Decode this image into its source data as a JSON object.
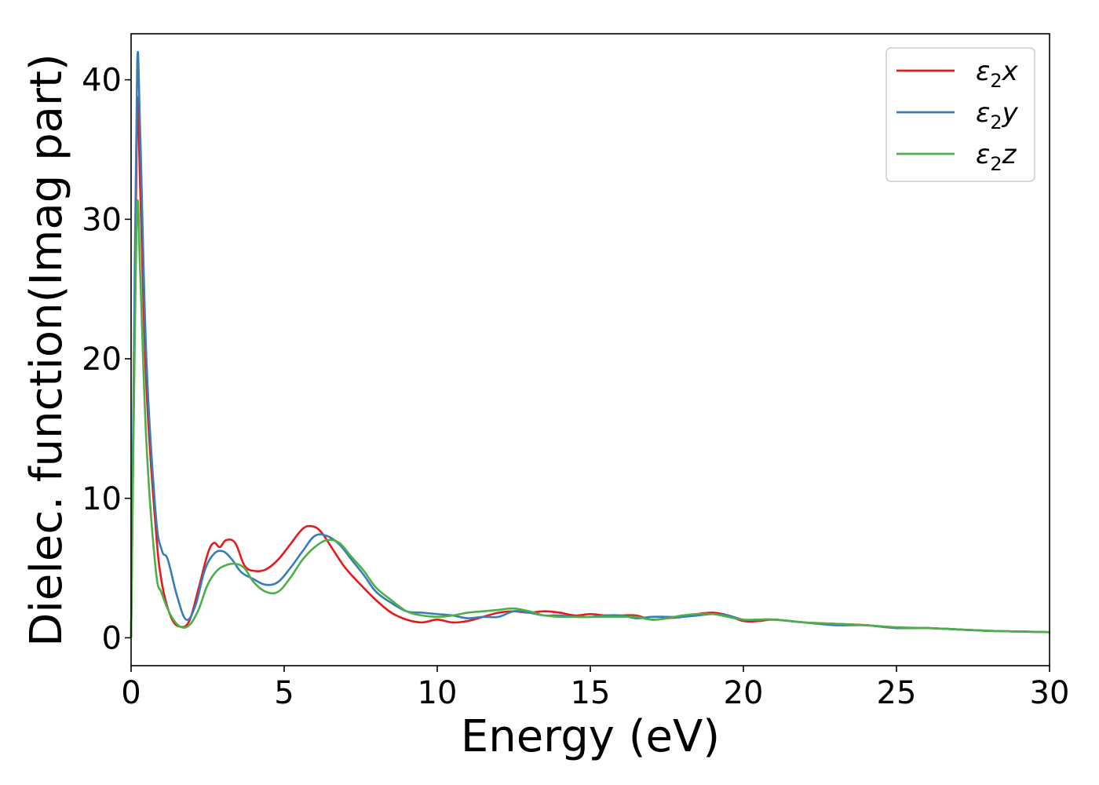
{
  "chart_data": {
    "type": "line",
    "title": "",
    "xlabel": "Energy (eV)",
    "ylabel": "Dielec. function(Imag part)",
    "xlim": [
      0,
      30
    ],
    "ylim": [
      -2,
      43.3
    ],
    "x_ticks": [
      0,
      5,
      10,
      15,
      20,
      25,
      30
    ],
    "y_ticks": [
      0,
      10,
      20,
      30,
      40
    ],
    "grid": false,
    "legend_position": "top-right",
    "series": [
      {
        "name": "ε2x",
        "legend_base": "ε",
        "legend_sub": "2",
        "legend_var": "x",
        "color": "#e41a1c",
        "x": [
          0,
          0.1,
          0.2,
          0.3,
          0.5,
          0.8,
          1.0,
          1.3,
          1.6,
          1.9,
          2.2,
          2.5,
          2.7,
          2.9,
          3.1,
          3.4,
          3.7,
          4.0,
          4.4,
          4.8,
          5.2,
          5.6,
          5.9,
          6.2,
          6.6,
          7.0,
          7.5,
          8.0,
          8.5,
          9.0,
          9.5,
          10.0,
          10.5,
          11.0,
          11.5,
          12.0,
          12.5,
          13.0,
          13.5,
          14.0,
          14.5,
          15.0,
          15.5,
          16.0,
          16.5,
          17.0,
          17.5,
          18.0,
          18.5,
          19.0,
          19.5,
          20.0,
          20.5,
          21.0,
          22.0,
          23.0,
          24.0,
          25.0,
          26.0,
          27.0,
          28.0,
          29.0,
          30.0
        ],
        "values": [
          0,
          20,
          38.2,
          32,
          18,
          8,
          4,
          1.5,
          0.8,
          1.2,
          3.5,
          6.0,
          6.8,
          6.5,
          7.0,
          6.8,
          5.2,
          4.8,
          4.9,
          5.6,
          6.7,
          7.8,
          8.0,
          7.6,
          6.3,
          5.0,
          3.8,
          2.7,
          1.8,
          1.3,
          1.1,
          1.3,
          1.1,
          1.2,
          1.5,
          1.8,
          1.9,
          1.8,
          1.9,
          1.8,
          1.6,
          1.7,
          1.6,
          1.6,
          1.6,
          1.3,
          1.4,
          1.5,
          1.7,
          1.8,
          1.6,
          1.2,
          1.2,
          1.3,
          1.1,
          1.0,
          0.9,
          0.7,
          0.7,
          0.6,
          0.5,
          0.45,
          0.4
        ]
      },
      {
        "name": "ε2y",
        "legend_base": "ε",
        "legend_sub": "2",
        "legend_var": "y",
        "color": "#377eb8",
        "x": [
          0,
          0.1,
          0.2,
          0.3,
          0.5,
          0.8,
          1.0,
          1.2,
          1.5,
          1.8,
          2.1,
          2.4,
          2.7,
          3.0,
          3.3,
          3.6,
          4.0,
          4.4,
          4.8,
          5.2,
          5.6,
          6.0,
          6.4,
          6.8,
          7.2,
          7.6,
          8.0,
          8.5,
          9.0,
          9.5,
          10.0,
          10.5,
          11.0,
          11.5,
          12.0,
          12.5,
          13.0,
          13.5,
          14.0,
          14.5,
          15.0,
          15.5,
          16.0,
          16.5,
          17.0,
          17.5,
          18.0,
          18.5,
          19.0,
          19.5,
          20.0,
          20.5,
          21.0,
          22.0,
          23.0,
          24.0,
          25.0,
          26.0,
          27.0,
          28.0,
          29.0,
          30.0
        ],
        "values": [
          0,
          22,
          41.2,
          36,
          20,
          9,
          6.3,
          5.6,
          3.0,
          1.3,
          2.3,
          4.8,
          6.0,
          6.2,
          5.6,
          4.7,
          4.2,
          3.8,
          4.0,
          5.0,
          6.2,
          7.3,
          7.3,
          6.7,
          5.6,
          4.5,
          3.3,
          2.5,
          1.9,
          1.8,
          1.7,
          1.6,
          1.4,
          1.5,
          1.5,
          1.9,
          1.8,
          1.6,
          1.6,
          1.5,
          1.5,
          1.6,
          1.6,
          1.4,
          1.5,
          1.5,
          1.5,
          1.6,
          1.7,
          1.6,
          1.3,
          1.3,
          1.3,
          1.1,
          0.9,
          0.9,
          0.7,
          0.7,
          0.6,
          0.5,
          0.45,
          0.4
        ]
      },
      {
        "name": "ε2z",
        "legend_base": "ε",
        "legend_sub": "2",
        "legend_var": "z",
        "color": "#4daf4a",
        "x": [
          0,
          0.1,
          0.2,
          0.3,
          0.5,
          0.8,
          1.0,
          1.3,
          1.6,
          1.9,
          2.2,
          2.5,
          2.8,
          3.1,
          3.4,
          3.7,
          4.0,
          4.4,
          4.8,
          5.2,
          5.6,
          6.0,
          6.4,
          6.8,
          7.2,
          7.6,
          8.0,
          8.5,
          9.0,
          9.5,
          10.0,
          10.5,
          11.0,
          11.5,
          12.0,
          12.5,
          13.0,
          13.5,
          14.0,
          14.5,
          15.0,
          15.5,
          16.0,
          16.5,
          17.0,
          17.5,
          18.0,
          18.5,
          19.0,
          19.5,
          20.0,
          20.5,
          21.0,
          22.0,
          23.0,
          24.0,
          25.0,
          26.0,
          27.0,
          28.0,
          29.0,
          30.0
        ],
        "values": [
          0,
          18,
          31,
          26,
          14,
          5,
          3.2,
          1.6,
          0.8,
          0.9,
          2.0,
          3.8,
          4.8,
          5.2,
          5.3,
          5.0,
          4.0,
          3.3,
          3.3,
          4.3,
          5.6,
          6.5,
          7.0,
          6.8,
          5.8,
          4.8,
          3.6,
          2.7,
          1.9,
          1.6,
          1.5,
          1.6,
          1.8,
          1.9,
          2.0,
          2.1,
          1.9,
          1.6,
          1.5,
          1.5,
          1.5,
          1.5,
          1.5,
          1.5,
          1.3,
          1.4,
          1.6,
          1.7,
          1.7,
          1.5,
          1.3,
          1.3,
          1.3,
          1.1,
          1.0,
          0.9,
          0.75,
          0.7,
          0.6,
          0.5,
          0.45,
          0.4
        ]
      }
    ]
  }
}
